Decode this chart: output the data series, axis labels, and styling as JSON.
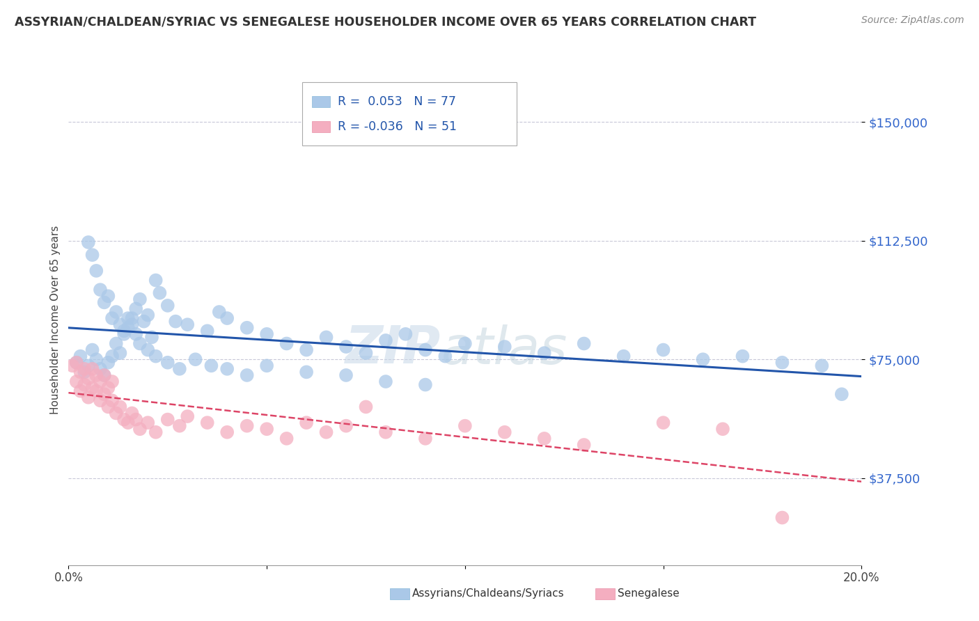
{
  "title": "ASSYRIAN/CHALDEAN/SYRIAC VS SENEGALESE HOUSEHOLDER INCOME OVER 65 YEARS CORRELATION CHART",
  "source_text": "Source: ZipAtlas.com",
  "ylabel": "Householder Income Over 65 years",
  "watermark": "ZIPAtlas",
  "xlim": [
    0.0,
    0.2
  ],
  "ylim": [
    10000,
    165000
  ],
  "yticks": [
    37500,
    75000,
    112500,
    150000
  ],
  "ytick_labels": [
    "$37,500",
    "$75,000",
    "$112,500",
    "$150,000"
  ],
  "xticks": [
    0.0,
    0.05,
    0.1,
    0.15,
    0.2
  ],
  "xtick_labels_shown": [
    "0.0%",
    "20.0%"
  ],
  "blue_color": "#aac8e8",
  "pink_color": "#f4aec0",
  "trend_blue_color": "#2255aa",
  "trend_pink_color": "#dd4466",
  "grid_color": "#c8c8d8",
  "title_color": "#333333",
  "ytick_color": "#3366cc",
  "blue_trend": {
    "x": [
      0.0,
      0.2
    ],
    "y": [
      72000,
      77000
    ]
  },
  "pink_trend": {
    "x": [
      0.0,
      0.08
    ],
    "y": [
      65000,
      60000
    ]
  },
  "blue_scatter_x": [
    0.002,
    0.003,
    0.004,
    0.005,
    0.006,
    0.007,
    0.008,
    0.009,
    0.01,
    0.011,
    0.012,
    0.013,
    0.014,
    0.015,
    0.016,
    0.017,
    0.018,
    0.019,
    0.02,
    0.021,
    0.022,
    0.023,
    0.025,
    0.027,
    0.03,
    0.035,
    0.038,
    0.04,
    0.045,
    0.05,
    0.055,
    0.06,
    0.065,
    0.07,
    0.075,
    0.08,
    0.085,
    0.09,
    0.095,
    0.1,
    0.11,
    0.12,
    0.13,
    0.14,
    0.15,
    0.16,
    0.17,
    0.18,
    0.19,
    0.195,
    0.005,
    0.006,
    0.007,
    0.008,
    0.009,
    0.01,
    0.011,
    0.012,
    0.013,
    0.014,
    0.015,
    0.016,
    0.017,
    0.018,
    0.02,
    0.022,
    0.025,
    0.028,
    0.032,
    0.036,
    0.04,
    0.045,
    0.05,
    0.06,
    0.07,
    0.08,
    0.09
  ],
  "blue_scatter_y": [
    74000,
    76000,
    71000,
    73000,
    78000,
    75000,
    72000,
    70000,
    74000,
    76000,
    80000,
    77000,
    83000,
    85000,
    88000,
    91000,
    94000,
    87000,
    89000,
    82000,
    100000,
    96000,
    92000,
    87000,
    86000,
    84000,
    90000,
    88000,
    85000,
    83000,
    80000,
    78000,
    82000,
    79000,
    77000,
    81000,
    83000,
    78000,
    76000,
    80000,
    79000,
    77000,
    80000,
    76000,
    78000,
    75000,
    76000,
    74000,
    73000,
    64000,
    112000,
    108000,
    103000,
    97000,
    93000,
    95000,
    88000,
    90000,
    86000,
    84000,
    88000,
    86000,
    83000,
    80000,
    78000,
    76000,
    74000,
    72000,
    75000,
    73000,
    72000,
    70000,
    73000,
    71000,
    70000,
    68000,
    67000
  ],
  "pink_scatter_x": [
    0.001,
    0.002,
    0.002,
    0.003,
    0.003,
    0.004,
    0.004,
    0.005,
    0.005,
    0.006,
    0.006,
    0.007,
    0.007,
    0.008,
    0.008,
    0.009,
    0.009,
    0.01,
    0.01,
    0.011,
    0.011,
    0.012,
    0.013,
    0.014,
    0.015,
    0.016,
    0.017,
    0.018,
    0.02,
    0.022,
    0.025,
    0.028,
    0.03,
    0.035,
    0.04,
    0.045,
    0.05,
    0.055,
    0.06,
    0.065,
    0.07,
    0.075,
    0.08,
    0.09,
    0.1,
    0.11,
    0.12,
    0.13,
    0.15,
    0.165,
    0.18
  ],
  "pink_scatter_y": [
    73000,
    68000,
    74000,
    65000,
    71000,
    67000,
    72000,
    63000,
    69000,
    66000,
    72000,
    65000,
    70000,
    62000,
    68000,
    64000,
    70000,
    60000,
    66000,
    62000,
    68000,
    58000,
    60000,
    56000,
    55000,
    58000,
    56000,
    53000,
    55000,
    52000,
    56000,
    54000,
    57000,
    55000,
    52000,
    54000,
    53000,
    50000,
    55000,
    52000,
    54000,
    60000,
    52000,
    50000,
    54000,
    52000,
    50000,
    48000,
    55000,
    53000,
    25000
  ]
}
